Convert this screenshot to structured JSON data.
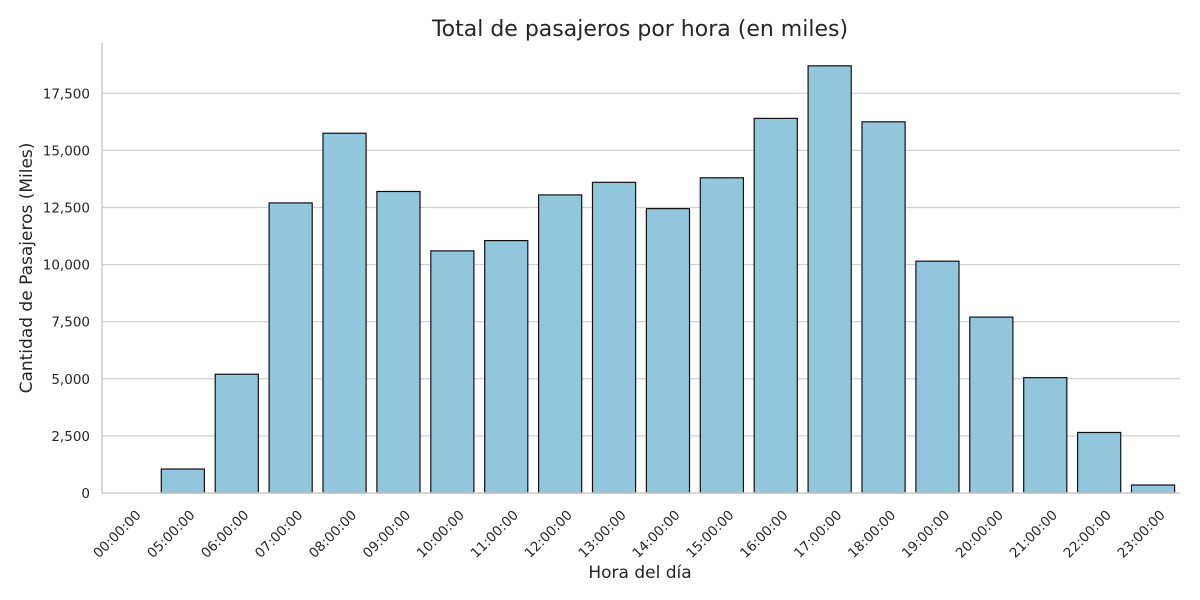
{
  "chart_data": {
    "type": "bar",
    "title": "Total de pasajeros por hora (en miles)",
    "xlabel": "Hora del día",
    "ylabel": "Cantidad de Pasajeros (Miles)",
    "categories": [
      "00:00:00",
      "05:00:00",
      "06:00:00",
      "07:00:00",
      "08:00:00",
      "09:00:00",
      "10:00:00",
      "11:00:00",
      "12:00:00",
      "13:00:00",
      "14:00:00",
      "15:00:00",
      "16:00:00",
      "17:00:00",
      "18:00:00",
      "19:00:00",
      "20:00:00",
      "21:00:00",
      "22:00:00",
      "23:00:00"
    ],
    "values": [
      0,
      1050,
      5200,
      12700,
      15750,
      13200,
      10600,
      11050,
      13050,
      13600,
      12450,
      13800,
      16400,
      18700,
      16250,
      10150,
      7700,
      5050,
      2650,
      350
    ],
    "ylim": [
      0,
      19700
    ],
    "yticks": [
      0,
      2500,
      5000,
      7500,
      10000,
      12500,
      15000,
      17500
    ],
    "ytick_labels": [
      "0",
      "2,500",
      "5,000",
      "7,500",
      "10,000",
      "12,500",
      "15,000",
      "17,500"
    ],
    "bar_color": "#92c6dd",
    "edge_color": "#111111",
    "grid": "horizontal",
    "legend": "none"
  }
}
